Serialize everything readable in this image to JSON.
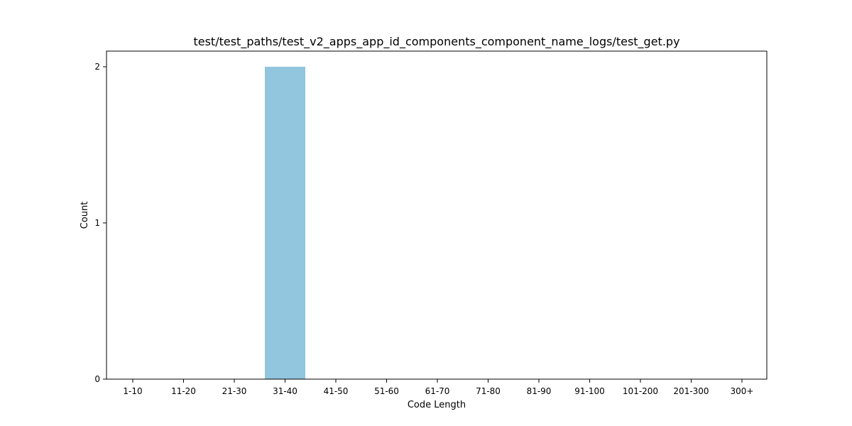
{
  "chart_data": {
    "type": "bar",
    "title": "test/test_paths/test_v2_apps_app_id_components_component_name_logs/test_get.py",
    "xlabel": "Code Length",
    "ylabel": "Count",
    "categories": [
      "1-10",
      "11-20",
      "21-30",
      "31-40",
      "41-50",
      "51-60",
      "61-70",
      "71-80",
      "81-90",
      "91-100",
      "101-200",
      "201-300",
      "300+"
    ],
    "values": [
      0,
      0,
      0,
      2,
      0,
      0,
      0,
      0,
      0,
      0,
      0,
      0,
      0
    ],
    "yticks": [
      0,
      1,
      2
    ],
    "ylim": [
      0,
      2.1
    ],
    "grid": false,
    "legend": "none",
    "bar_color": "#92c5de"
  }
}
